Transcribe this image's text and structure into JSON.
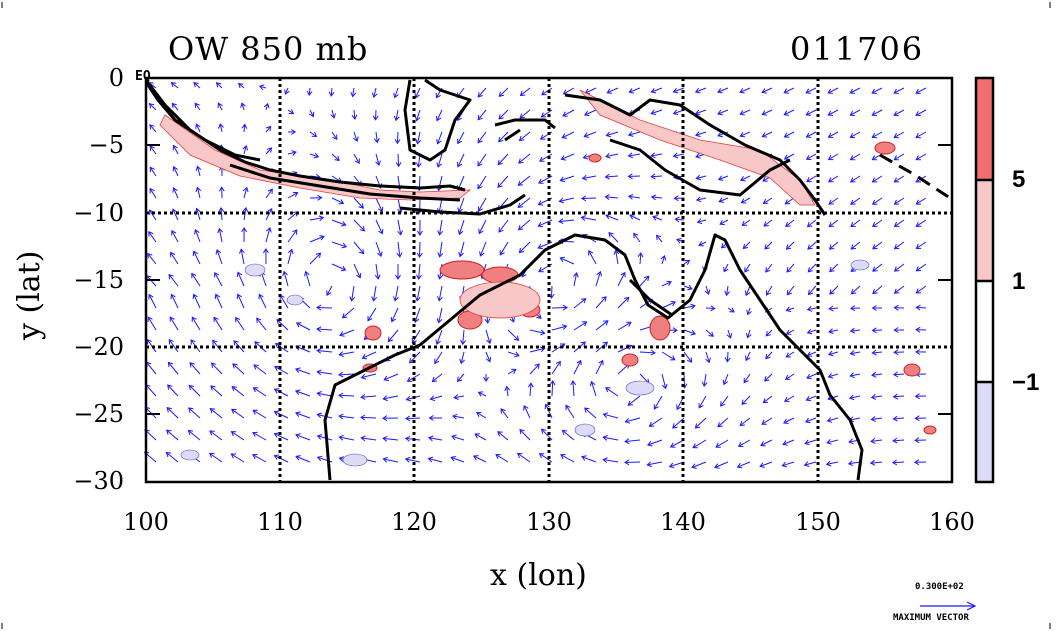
{
  "title": {
    "left": "OW 850 mb",
    "right": "011706"
  },
  "axes": {
    "xlabel": "x (lon)",
    "ylabel": "y (lat)",
    "xticks": [
      "100",
      "110",
      "120",
      "130",
      "140",
      "150",
      "160"
    ],
    "yticks": [
      "0",
      "−5",
      "−10",
      "−15",
      "−20",
      "−25",
      "−30"
    ],
    "x_range": [
      100,
      160
    ],
    "y_range": [
      -30,
      0
    ],
    "eq_label": "EQ"
  },
  "colorbar": {
    "ticks": [
      "5",
      "1",
      "−1"
    ],
    "colors": [
      "#f07070",
      "#f8c8c8",
      "#ffffff",
      "#dcdcf8"
    ]
  },
  "max_vector": {
    "value": "0.300E+02",
    "label": "MAXIMUM VECTOR"
  },
  "colors": {
    "vectors": "#1a1aff",
    "positive": "#e03030",
    "negative": "#3030d0",
    "coast": "#000000"
  }
}
